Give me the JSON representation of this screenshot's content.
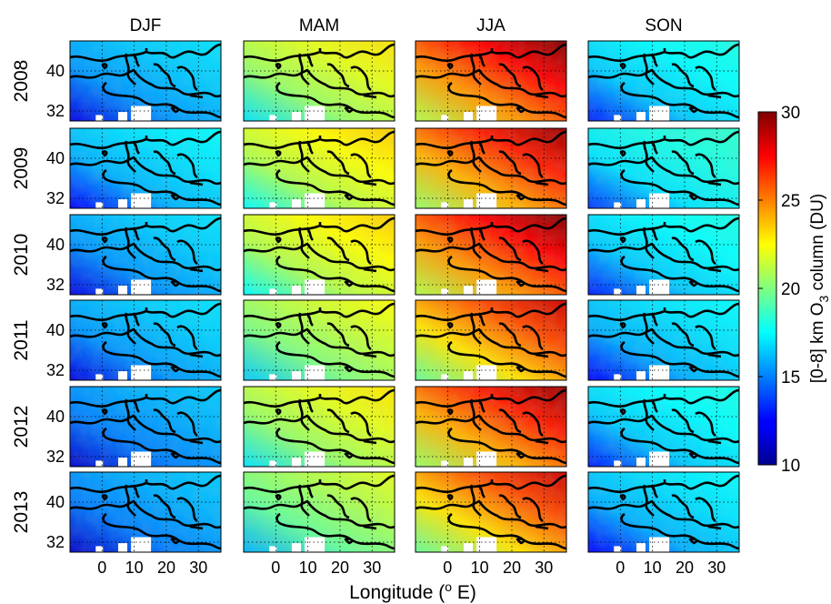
{
  "chart_data": {
    "type": "heatmap",
    "title": "",
    "columns": [
      "DJF",
      "MAM",
      "JJA",
      "SON"
    ],
    "rows": [
      "2008",
      "2009",
      "2010",
      "2011",
      "2012",
      "2013"
    ],
    "xlabel": "Longitude (° E)",
    "xlabel_parts": {
      "pre": "Longitude (",
      "sup": "o",
      "post": " E)"
    },
    "x_ticks": [
      0,
      10,
      20,
      30
    ],
    "xlim": [
      -10,
      37
    ],
    "y_ticks": [
      32,
      40
    ],
    "ylim": [
      30,
      46
    ],
    "colorbar": {
      "label": "[0-8] km O3 column (DU)",
      "label_parts": {
        "pre": "[0-8] km O",
        "sub": "3",
        "post": " column (DU)"
      },
      "min": 10,
      "max": 30,
      "ticks": [
        10,
        15,
        20,
        25,
        30
      ],
      "colormap": "jet"
    },
    "grid": true,
    "mean_values_DU": {
      "DJF": [
        16,
        16.5,
        16,
        16,
        15.5,
        15.5
      ],
      "MAM": [
        21,
        21.5,
        21.5,
        20.5,
        21,
        20
      ],
      "JJA": [
        25,
        24.5,
        25,
        23.5,
        24.5,
        23.5
      ],
      "SON": [
        17,
        17.5,
        17,
        16.5,
        17,
        16.5
      ]
    }
  },
  "labels": {
    "row_labels": [
      "2008",
      "2009",
      "2010",
      "2011",
      "2012",
      "2013"
    ]
  }
}
